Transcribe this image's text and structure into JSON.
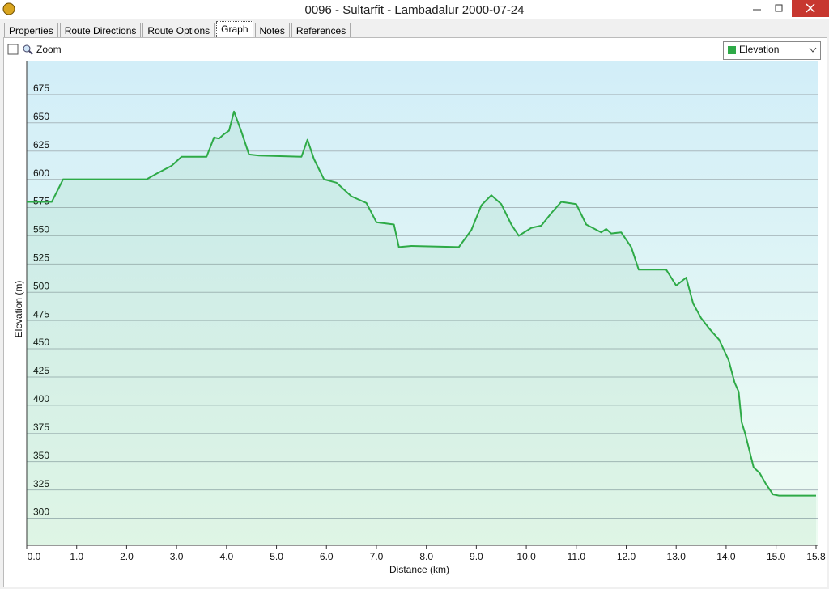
{
  "window": {
    "title": "0096 - Sultarfit - Lambadalur 2000-07-24"
  },
  "tabs": [
    "Properties",
    "Route Directions",
    "Route Options",
    "Graph",
    "Notes",
    "References"
  ],
  "toolbar": {
    "zoom_label": "Zoom"
  },
  "chart_data": {
    "type": "line",
    "x_label": "Distance  (km)",
    "y_label": "Elevation (m)",
    "xlim": [
      0,
      15.8
    ],
    "ylim": [
      276,
      705
    ],
    "xticks": [
      {
        "value": 0,
        "label": "0.0"
      },
      {
        "value": 1,
        "label": "1.0"
      },
      {
        "value": 2,
        "label": "2.0"
      },
      {
        "value": 3,
        "label": "3.0"
      },
      {
        "value": 4,
        "label": "4.0"
      },
      {
        "value": 5,
        "label": "5.0"
      },
      {
        "value": 6,
        "label": "6.0"
      },
      {
        "value": 7,
        "label": "7.0"
      },
      {
        "value": 8,
        "label": "8.0"
      },
      {
        "value": 9,
        "label": "9.0"
      },
      {
        "value": 10,
        "label": "10.0"
      },
      {
        "value": 11,
        "label": "11.0"
      },
      {
        "value": 12,
        "label": "12.0"
      },
      {
        "value": 13,
        "label": "13.0"
      },
      {
        "value": 14,
        "label": "14.0"
      },
      {
        "value": 15,
        "label": "15.0"
      },
      15.8
    ],
    "yticks": [
      300,
      325,
      350,
      375,
      400,
      425,
      450,
      475,
      500,
      525,
      550,
      575,
      600,
      625,
      650,
      675
    ],
    "grid": true,
    "x": [
      0,
      0.5,
      0.73,
      2.4,
      2.6,
      2.9,
      3.1,
      3.6,
      3.75,
      3.85,
      3.95,
      4.05,
      4.15,
      4.3,
      4.45,
      4.65,
      5.5,
      5.62,
      5.75,
      5.95,
      6.2,
      6.5,
      6.8,
      7.0,
      7.35,
      7.45,
      7.7,
      8.65,
      8.9,
      9.1,
      9.3,
      9.5,
      9.7,
      9.85,
      10.1,
      10.3,
      10.5,
      10.7,
      11.0,
      11.2,
      11.5,
      11.6,
      11.7,
      11.9,
      12.1,
      12.25,
      12.8,
      13.0,
      13.2,
      13.34,
      13.5,
      13.66,
      13.86,
      14.05,
      14.17,
      14.25,
      14.31,
      14.38,
      14.55,
      14.67,
      14.8,
      14.94,
      15.06,
      15.8
    ],
    "series": [
      {
        "name": "Elevation",
        "color": "#2eaa47",
        "values": [
          580,
          580,
          600,
          600,
          605,
          612,
          620,
          620,
          637,
          636,
          640,
          643,
          660,
          642,
          622,
          621,
          620,
          635,
          618,
          600,
          597,
          585,
          579,
          562,
          560,
          540,
          541,
          540,
          555,
          577,
          586,
          578,
          560,
          550,
          557,
          559,
          570,
          580,
          578,
          560,
          553,
          556,
          552,
          553,
          540,
          520,
          520,
          506,
          513,
          490,
          477,
          468,
          458,
          440,
          420,
          412,
          385,
          375,
          345,
          340,
          330,
          321,
          320,
          320
        ]
      }
    ]
  }
}
